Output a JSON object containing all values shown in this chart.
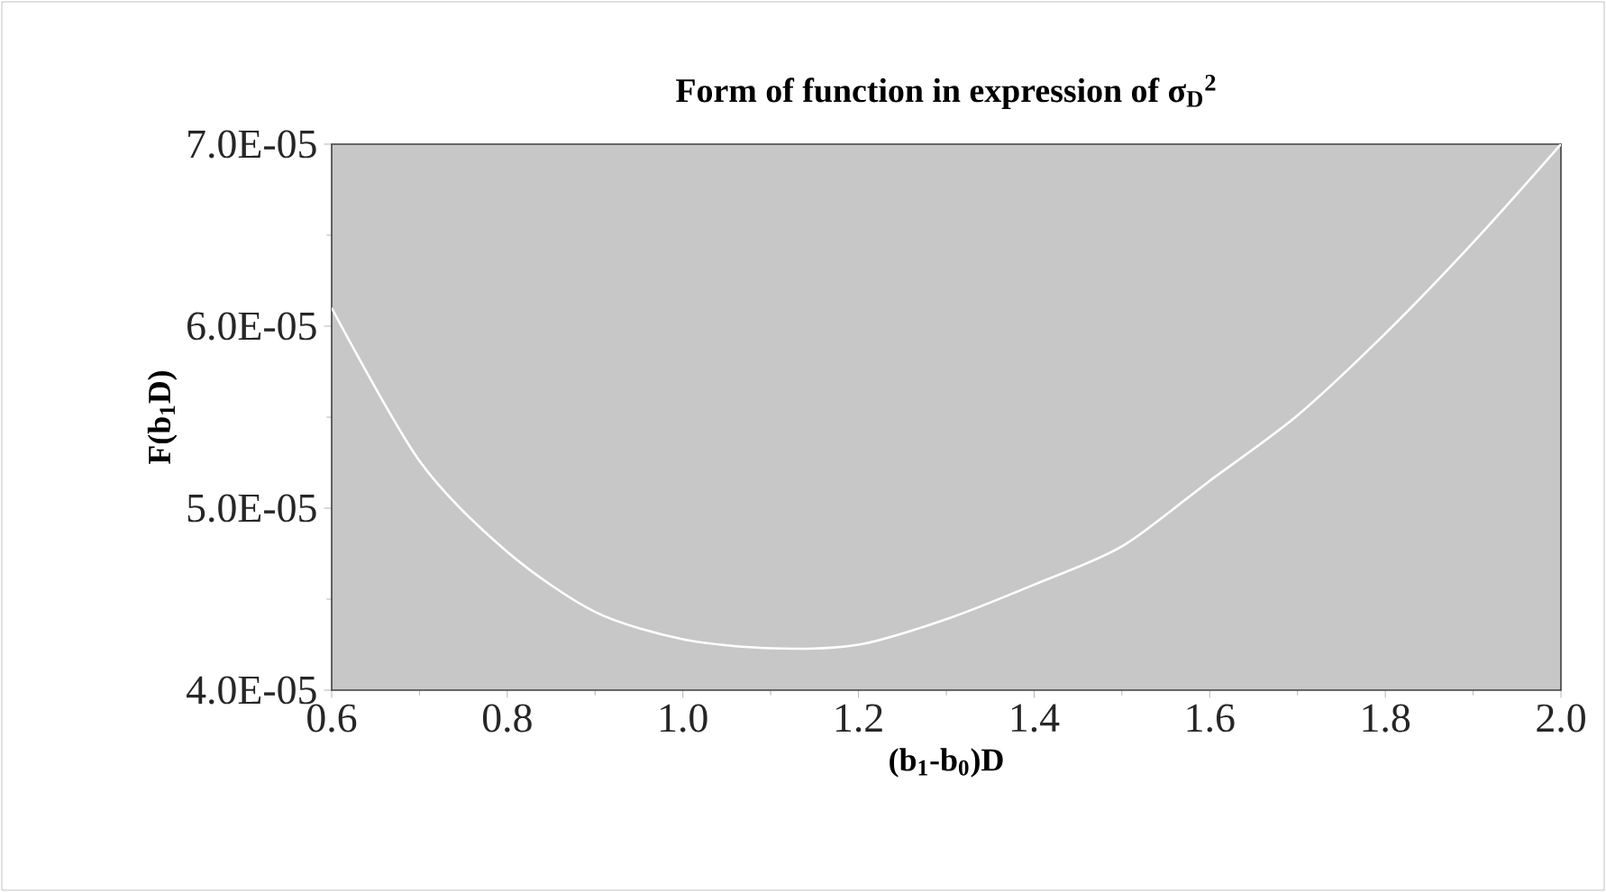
{
  "chart_data": {
    "type": "line",
    "title": "Form of function in expression of σ$_{D}$$^{2}$",
    "xlabel": "(b$_{1}$-b$_{0}$)D",
    "ylabel": "F(b$_{1}$D)",
    "x": [
      0.6,
      0.7,
      0.8,
      0.9,
      1.0,
      1.1,
      1.2,
      1.3,
      1.4,
      1.5,
      1.6,
      1.7,
      1.8,
      1.9,
      2.0
    ],
    "series": [
      {
        "color": "#ffffff",
        "values": [
          6.1e-05,
          5.26e-05,
          4.76e-05,
          4.43e-05,
          4.28e-05,
          4.23e-05,
          4.25e-05,
          4.39e-05,
          4.58e-05,
          4.79e-05,
          5.15e-05,
          5.51e-05,
          5.96e-05,
          6.46e-05,
          7e-05
        ]
      }
    ],
    "xlim": [
      0.6,
      2.0
    ],
    "ylim": [
      4e-05,
      7e-05
    ],
    "xticks": [
      0.6,
      0.8,
      {
        "value": 1.0,
        "label": "1.0"
      },
      1.2,
      1.4,
      1.6,
      1.8,
      {
        "value": 2.0,
        "label": "2.0"
      }
    ],
    "yticks": [
      {
        "value": 4e-05,
        "label": "4.0E-05"
      },
      {
        "value": 5e-05,
        "label": "5.0E-05"
      },
      {
        "value": 6e-05,
        "label": "6.0E-05"
      },
      {
        "value": 7e-05,
        "label": "7.0E-05"
      }
    ],
    "grid": false,
    "marker": "none",
    "line_style": "solid"
  }
}
